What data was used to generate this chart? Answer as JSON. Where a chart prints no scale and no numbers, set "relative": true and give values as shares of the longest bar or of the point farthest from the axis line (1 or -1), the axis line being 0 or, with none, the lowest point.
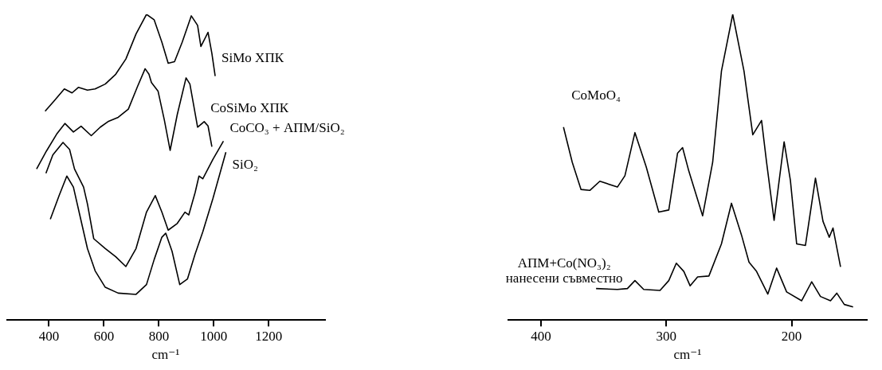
{
  "chart_data": [
    {
      "type": "line",
      "relative": true,
      "xlabel": "cm⁻¹",
      "xlim": [
        245,
        1405
      ],
      "xticks": [
        400,
        600,
        800,
        1000,
        1200
      ],
      "grid": false,
      "legend": false,
      "tick_labels": "x",
      "marker": "none",
      "line_style": "solid",
      "series": [
        {
          "name": "SiMo ХПК",
          "color": "#000000",
          "x": [
            386,
            419,
            456,
            484,
            507,
            540,
            568,
            605,
            643,
            680,
            717,
            755,
            783,
            811,
            834,
            857,
            885,
            918,
            941,
            953,
            979,
            993,
            1005
          ],
          "values": [
            0.683,
            0.717,
            0.756,
            0.743,
            0.761,
            0.752,
            0.756,
            0.772,
            0.804,
            0.854,
            0.936,
            1.0,
            0.982,
            0.909,
            0.84,
            0.845,
            0.909,
            0.995,
            0.964,
            0.895,
            0.941,
            0.872,
            0.798
          ]
        },
        {
          "name": "CoSiMo ХПК",
          "color": "#000000",
          "x": [
            355,
            391,
            428,
            458,
            489,
            517,
            554,
            587,
            615,
            652,
            689,
            722,
            750,
            764,
            773,
            797,
            820,
            841,
            867,
            899,
            913,
            941,
            965,
            979,
            993
          ],
          "values": [
            0.494,
            0.553,
            0.608,
            0.643,
            0.615,
            0.634,
            0.603,
            0.631,
            0.649,
            0.663,
            0.69,
            0.763,
            0.822,
            0.804,
            0.777,
            0.749,
            0.654,
            0.555,
            0.672,
            0.792,
            0.772,
            0.631,
            0.649,
            0.635,
            0.567
          ]
        },
        {
          "name": "CoCO₃ + АПМ/SiO₂",
          "color": "#000000",
          "x": [
            389,
            414,
            451,
            475,
            493,
            526,
            540,
            563,
            605,
            643,
            680,
            717,
            755,
            787,
            811,
            834,
            867,
            895,
            909,
            932,
            946,
            960,
            997,
            1035
          ],
          "values": [
            0.48,
            0.54,
            0.581,
            0.558,
            0.494,
            0.435,
            0.38,
            0.266,
            0.234,
            0.207,
            0.175,
            0.234,
            0.353,
            0.407,
            0.353,
            0.294,
            0.316,
            0.353,
            0.344,
            0.417,
            0.471,
            0.462,
            0.526,
            0.585
          ]
        },
        {
          "name": "SiO₂",
          "color": "#000000",
          "x": [
            405,
            437,
            465,
            489,
            512,
            540,
            568,
            605,
            652,
            717,
            755,
            783,
            811,
            825,
            848,
            876,
            904,
            932,
            960,
            997,
            1044
          ],
          "values": [
            0.33,
            0.407,
            0.471,
            0.435,
            0.344,
            0.234,
            0.161,
            0.107,
            0.088,
            0.084,
            0.116,
            0.198,
            0.271,
            0.284,
            0.225,
            0.116,
            0.134,
            0.216,
            0.289,
            0.398,
            0.549
          ]
        }
      ]
    },
    {
      "type": "line",
      "relative": true,
      "xlabel": "cm⁻¹",
      "xlim": [
        426,
        140
      ],
      "xticks": [
        400,
        300,
        200
      ],
      "grid": false,
      "legend": false,
      "tick_labels": "x",
      "marker": "none",
      "line_style": "solid",
      "series": [
        {
          "name": "CoMoO₄",
          "color": "#000000",
          "x": [
            382,
            375,
            368,
            361,
            353,
            339,
            333,
            325,
            316,
            306,
            298,
            291,
            287,
            282,
            271,
            263,
            256,
            247,
            238,
            231,
            224,
            220,
            214,
            206,
            201,
            196,
            189,
            181,
            175,
            170,
            167,
            161
          ],
          "values": [
            0.631,
            0.516,
            0.427,
            0.424,
            0.454,
            0.435,
            0.472,
            0.613,
            0.501,
            0.353,
            0.36,
            0.546,
            0.564,
            0.487,
            0.341,
            0.516,
            0.814,
            1.0,
            0.814,
            0.606,
            0.653,
            0.516,
            0.326,
            0.583,
            0.457,
            0.249,
            0.244,
            0.464,
            0.323,
            0.271,
            0.301,
            0.174
          ]
        },
        {
          "name": "АПМ+Co(NO₃)₂\nнанесени съвместно",
          "color": "#000000",
          "x": [
            356,
            339,
            331,
            325,
            318,
            305,
            298,
            292,
            286,
            281,
            275,
            266,
            256,
            248,
            240,
            234,
            228,
            219,
            212,
            204,
            192,
            184,
            177,
            169,
            164,
            158,
            151
          ],
          "values": [
            0.103,
            0.1,
            0.103,
            0.129,
            0.1,
            0.097,
            0.129,
            0.186,
            0.159,
            0.112,
            0.141,
            0.144,
            0.249,
            0.382,
            0.278,
            0.189,
            0.159,
            0.085,
            0.17,
            0.092,
            0.063,
            0.125,
            0.077,
            0.063,
            0.088,
            0.051,
            0.043
          ]
        }
      ]
    }
  ]
}
